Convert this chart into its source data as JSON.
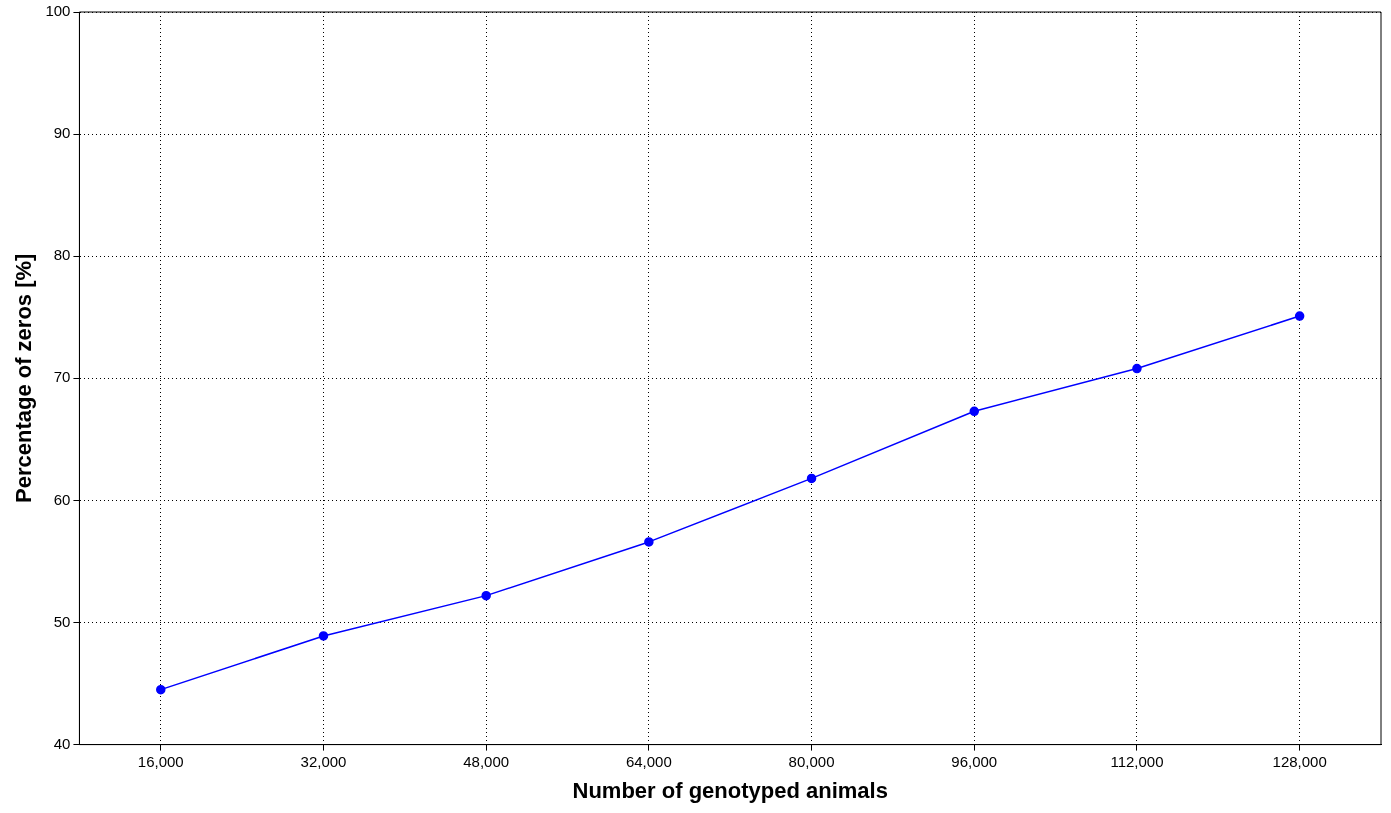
{
  "chart_data": {
    "type": "line",
    "xlabel": "Number of genotyped animals",
    "ylabel": "Percentage of zeros [%]",
    "x": [
      16000,
      32000,
      48000,
      64000,
      80000,
      96000,
      112000,
      128000
    ],
    "series": [
      {
        "color": "#0000ff",
        "values": [
          44.5,
          48.9,
          52.2,
          56.6,
          61.8,
          67.3,
          70.8,
          75.1
        ]
      }
    ],
    "xlim": [
      8000,
      136000
    ],
    "xticks": [
      {
        "value": 16000,
        "label": "16,000"
      },
      {
        "value": 32000,
        "label": "32,000"
      },
      {
        "value": 48000,
        "label": "48,000"
      },
      {
        "value": 64000,
        "label": "64,000"
      },
      {
        "value": 80000,
        "label": "80,000"
      },
      {
        "value": 96000,
        "label": "96,000"
      },
      {
        "value": 112000,
        "label": "112,000"
      },
      {
        "value": 128000,
        "label": "128,000"
      }
    ],
    "ylim": [
      40,
      100
    ],
    "yticks": [
      40,
      50,
      60,
      70,
      80,
      90,
      100
    ],
    "grid": true,
    "marker": "circle",
    "line_style": "solid"
  }
}
